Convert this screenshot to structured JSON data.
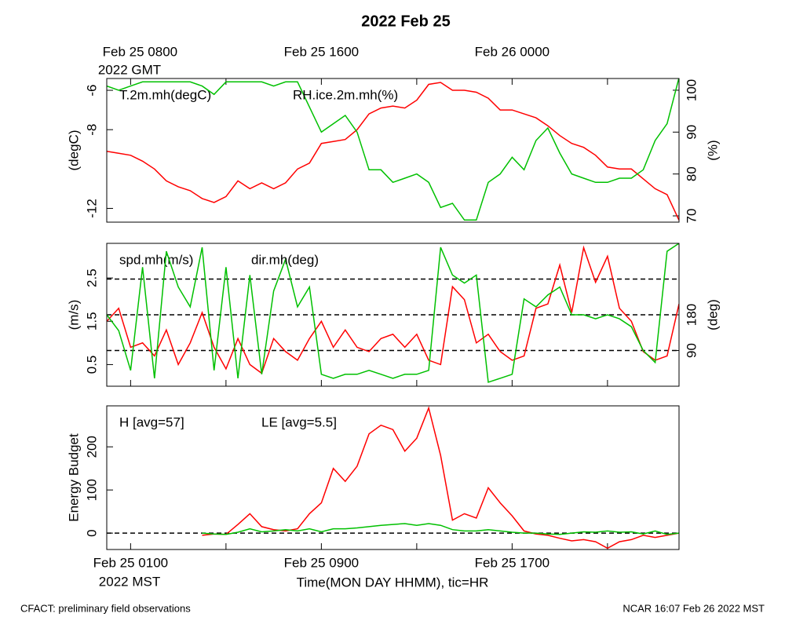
{
  "chart_data": [
    {
      "type": "line",
      "title": "2022 Feb 25",
      "ylabel": "(degC)",
      "y2label": "(%)",
      "x2_note": "2022 GMT",
      "xlim": [
        0,
        24
      ],
      "ylim": [
        -12.7,
        -5.4
      ],
      "yticks": [
        -6,
        -8,
        -12
      ],
      "y2lim": [
        68.5,
        102.8
      ],
      "y2ticks": [
        70,
        80,
        90,
        100
      ],
      "x2ticks": [
        {
          "value": 1,
          "label": "Feb 25 0800"
        },
        5,
        {
          "value": 9,
          "label": "Feb 25 1600"
        },
        13,
        {
          "value": 17,
          "label": "Feb 26 0000"
        },
        21
      ],
      "x": [
        0,
        0.5,
        1,
        1.5,
        2,
        2.5,
        3,
        3.5,
        4,
        4.5,
        5,
        5.5,
        6,
        6.5,
        7,
        7.5,
        8,
        8.5,
        9,
        9.5,
        10,
        10.5,
        11,
        11.5,
        12,
        12.5,
        13,
        13.5,
        14,
        14.5,
        15,
        15.5,
        16,
        16.5,
        17,
        17.5,
        18,
        18.5,
        19,
        19.5,
        20,
        20.5,
        21,
        21.5,
        22,
        22.5,
        23,
        23.5,
        24
      ],
      "series": [
        {
          "name": "T.2m.mh(degC)",
          "color": "#ff0000",
          "axis": "y",
          "values": [
            -9.1,
            -9.2,
            -9.3,
            -9.6,
            -10.0,
            -10.6,
            -10.9,
            -11.1,
            -11.5,
            -11.7,
            -11.4,
            -10.6,
            -11.0,
            -10.7,
            -11.0,
            -10.7,
            -10.0,
            -9.7,
            -8.7,
            -8.6,
            -8.5,
            -8.0,
            -7.2,
            -6.9,
            -6.8,
            -6.9,
            -6.5,
            -5.7,
            -5.6,
            -6.0,
            -6.0,
            -6.1,
            -6.4,
            -7.0,
            -7.0,
            -7.2,
            -7.4,
            -7.8,
            -8.3,
            -8.7,
            -8.9,
            -9.3,
            -9.9,
            -10.0,
            -10.0,
            -10.5,
            -11.0,
            -11.3,
            -12.6
          ]
        },
        {
          "name": "RH.ice.2m.mh(%)",
          "color": "#00c000",
          "axis": "y2",
          "values": [
            101,
            100,
            101,
            102,
            102,
            102,
            102,
            102,
            101,
            99,
            102,
            102,
            102,
            102,
            101,
            102,
            102,
            96,
            90,
            92,
            94,
            90,
            81,
            81,
            78,
            79,
            80,
            78,
            72,
            73,
            69,
            69,
            78,
            80,
            84,
            81,
            88,
            91,
            85,
            80,
            79,
            78,
            78,
            79,
            79,
            81,
            88,
            92,
            103
          ]
        }
      ]
    },
    {
      "type": "line",
      "ylabel": "(m/s)",
      "y2label": "(deg)",
      "xlim": [
        0,
        24
      ],
      "ylim": [
        0,
        3.3
      ],
      "yticks": [
        0.5,
        1.5,
        2.5
      ],
      "y2lim": [
        0,
        360
      ],
      "y2ticks": [
        90,
        180
      ],
      "y2_dashed": [
        90,
        180,
        270
      ],
      "xticks": [
        1,
        5,
        9,
        13,
        17,
        21
      ],
      "x": [
        0,
        0.5,
        1,
        1.5,
        2,
        2.5,
        3,
        3.5,
        4,
        4.5,
        5,
        5.5,
        6,
        6.5,
        7,
        7.5,
        8,
        8.5,
        9,
        9.5,
        10,
        10.5,
        11,
        11.5,
        12,
        12.5,
        13,
        13.5,
        14,
        14.5,
        15,
        15.5,
        16,
        16.5,
        17,
        17.5,
        18,
        18.5,
        19,
        19.5,
        20,
        20.5,
        21,
        21.5,
        22,
        22.5,
        23,
        23.5,
        24
      ],
      "series": [
        {
          "name": "spd.mh(m/s)",
          "color": "#ff0000",
          "axis": "y",
          "values": [
            1.5,
            1.8,
            0.9,
            1.0,
            0.7,
            1.3,
            0.5,
            1.0,
            1.7,
            0.9,
            0.4,
            1.1,
            0.5,
            0.3,
            1.1,
            0.8,
            0.6,
            1.1,
            1.5,
            0.9,
            1.3,
            0.9,
            0.8,
            1.1,
            1.2,
            0.9,
            1.2,
            0.6,
            0.5,
            2.3,
            2.0,
            1.0,
            1.2,
            0.8,
            0.6,
            0.7,
            1.8,
            1.9,
            2.8,
            1.7,
            3.2,
            2.4,
            3.0,
            1.8,
            1.5,
            0.8,
            0.6,
            0.7,
            1.9
          ]
        },
        {
          "name": "dir.mh(deg)",
          "color": "#00c000",
          "axis": "y2",
          "values": [
            180,
            140,
            40,
            300,
            20,
            340,
            250,
            200,
            350,
            40,
            300,
            20,
            280,
            30,
            240,
            320,
            200,
            250,
            30,
            20,
            30,
            30,
            40,
            30,
            20,
            30,
            30,
            40,
            350,
            280,
            260,
            280,
            10,
            20,
            30,
            220,
            200,
            230,
            250,
            180,
            180,
            170,
            180,
            170,
            150,
            90,
            60,
            340,
            360
          ]
        }
      ]
    },
    {
      "type": "line",
      "ylabel": "Energy Budget",
      "xlabel": "Time(MON DAY HHMM), tic=HR",
      "x_note": "2022 MST",
      "xlim": [
        0,
        24
      ],
      "ylim": [
        -38,
        295
      ],
      "yticks": [
        0,
        100,
        200
      ],
      "y_dashed": [
        0
      ],
      "xticks": [
        {
          "value": 1,
          "label": "Feb 25 0100"
        },
        5,
        {
          "value": 9,
          "label": "Feb 25 0900"
        },
        13,
        {
          "value": 17,
          "label": "Feb 25 1700"
        },
        21
      ],
      "x": [
        0,
        0.5,
        1,
        1.5,
        2,
        2.5,
        3,
        3.5,
        4,
        4.5,
        5,
        5.5,
        6,
        6.5,
        7,
        7.5,
        8,
        8.5,
        9,
        9.5,
        10,
        10.5,
        11,
        11.5,
        12,
        12.5,
        13,
        13.5,
        14,
        14.5,
        15,
        15.5,
        16,
        16.5,
        17,
        17.5,
        18,
        18.5,
        19,
        19.5,
        20,
        20.5,
        21,
        21.5,
        22,
        22.5,
        23,
        23.5,
        24
      ],
      "series": [
        {
          "name": "H [avg=57]",
          "color": "#ff0000",
          "axis": "y",
          "values": [
            null,
            null,
            null,
            null,
            null,
            null,
            null,
            null,
            -5,
            -2,
            -3,
            20,
            45,
            15,
            8,
            5,
            10,
            45,
            70,
            150,
            120,
            155,
            230,
            250,
            240,
            190,
            220,
            290,
            180,
            30,
            45,
            35,
            105,
            70,
            40,
            5,
            -2,
            -5,
            -12,
            -18,
            -15,
            -20,
            -35,
            -20,
            -15,
            -5,
            -10,
            -5,
            0
          ]
        },
        {
          "name": "LE [avg=5.5]",
          "color": "#00c000",
          "axis": "y",
          "values": [
            null,
            null,
            null,
            null,
            null,
            null,
            null,
            null,
            0,
            -2,
            -3,
            2,
            10,
            3,
            5,
            8,
            5,
            10,
            3,
            10,
            10,
            12,
            15,
            18,
            20,
            22,
            18,
            22,
            18,
            8,
            5,
            5,
            8,
            5,
            2,
            0,
            0,
            -2,
            -3,
            0,
            3,
            2,
            5,
            2,
            3,
            -2,
            5,
            -3,
            0
          ]
        }
      ]
    }
  ],
  "footer": {
    "left": "CFACT: preliminary field observations",
    "right": "NCAR 16:07 Feb 26 2022 MST"
  }
}
